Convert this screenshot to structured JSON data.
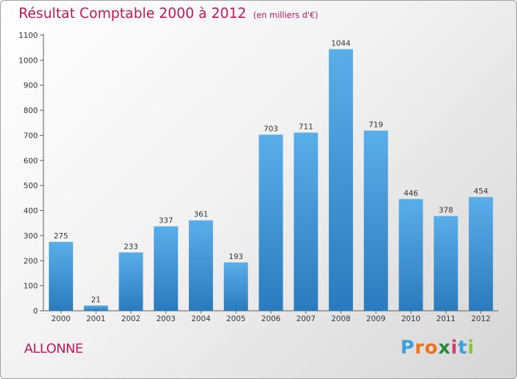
{
  "chart_data": {
    "type": "bar",
    "title": "Résultat Comptable 2000 à 2012",
    "subtitle": "(en milliers d'€)",
    "categories": [
      "2000",
      "2001",
      "2002",
      "2003",
      "2004",
      "2005",
      "2006",
      "2007",
      "2008",
      "2009",
      "2010",
      "2011",
      "2012"
    ],
    "values": [
      275,
      21,
      233,
      337,
      361,
      193,
      703,
      711,
      1044,
      719,
      446,
      378,
      454
    ],
    "yticks": [
      0,
      100,
      200,
      300,
      400,
      500,
      600,
      700,
      800,
      900,
      1000,
      1100
    ],
    "ylim": [
      0,
      1100
    ],
    "xlabel": "",
    "ylabel": "",
    "grid": false,
    "bar_color_top": "#5aaee8",
    "bar_color_bottom": "#2a7bbd"
  },
  "location": "ALLONNE",
  "brand": {
    "letters": [
      "P",
      "r",
      "o",
      "x",
      "i",
      "t",
      "i"
    ],
    "colors": [
      "#3aa0dc",
      "#e8741e",
      "#e8741e",
      "#2a8a3a",
      "#d83a6a",
      "#3aa0dc",
      "#8ac43a"
    ]
  },
  "colors": {
    "title": "#c2185b"
  }
}
